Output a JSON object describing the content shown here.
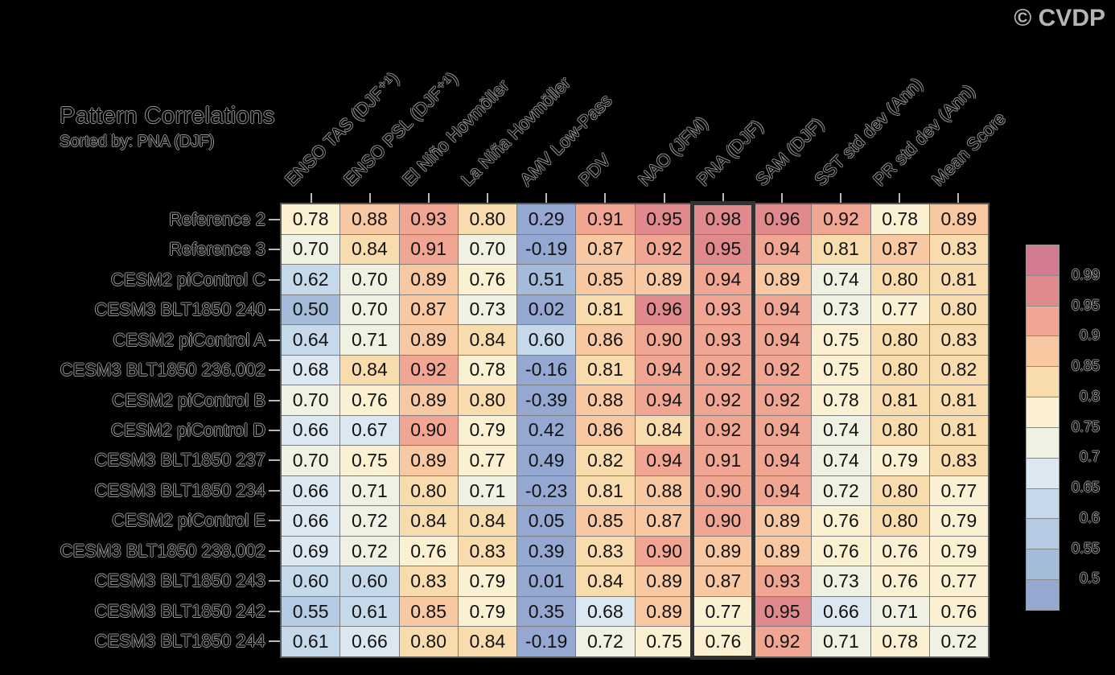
{
  "watermark": "© CVDP",
  "chart_data": {
    "type": "heatmap",
    "title": "Pattern Correlations",
    "subtitle": "Sorted by: PNA (DJF)",
    "columns": [
      "ENSO TAS (DJF⁺¹)",
      "ENSO PSL (DJF⁺¹)",
      "El Niño Hovmöller",
      "La Niña Hovmöller",
      "AMV Low-Pass",
      "PDV",
      "NAO (JFM)",
      "PNA (DJF)",
      "SAM (DJF)",
      "SST std dev (Ann)",
      "PR std dev (Ann)",
      "Mean Score"
    ],
    "rows": [
      "Reference 2",
      "Reference 3",
      "CESM2 piControl C",
      "CESM3 BLT1850 240",
      "CESM2 piControl A",
      "CESM3 BLT1850 236.002",
      "CESM2 piControl B",
      "CESM2 piControl D",
      "CESM3 BLT1850 237",
      "CESM3 BLT1850 234",
      "CESM2 piControl E",
      "CESM3 BLT1850 238.002",
      "CESM3 BLT1850 243",
      "CESM3 BLT1850 242",
      "CESM3 BLT1850 244"
    ],
    "values": [
      [
        "0.78",
        "0.88",
        "0.93",
        "0.80",
        "0.29",
        "0.91",
        "0.95",
        "0.98",
        "0.96",
        "0.92",
        "0.78",
        "0.89"
      ],
      [
        "0.70",
        "0.84",
        "0.91",
        "0.70",
        "-0.19",
        "0.87",
        "0.92",
        "0.95",
        "0.94",
        "0.81",
        "0.87",
        "0.83"
      ],
      [
        "0.62",
        "0.70",
        "0.89",
        "0.76",
        "0.51",
        "0.85",
        "0.89",
        "0.94",
        "0.89",
        "0.74",
        "0.80",
        "0.81"
      ],
      [
        "0.50",
        "0.70",
        "0.87",
        "0.73",
        "0.02",
        "0.81",
        "0.96",
        "0.93",
        "0.94",
        "0.73",
        "0.77",
        "0.80"
      ],
      [
        "0.64",
        "0.71",
        "0.89",
        "0.84",
        "0.60",
        "0.86",
        "0.90",
        "0.93",
        "0.94",
        "0.75",
        "0.80",
        "0.83"
      ],
      [
        "0.68",
        "0.84",
        "0.92",
        "0.78",
        "-0.16",
        "0.81",
        "0.94",
        "0.92",
        "0.92",
        "0.75",
        "0.80",
        "0.82"
      ],
      [
        "0.70",
        "0.76",
        "0.89",
        "0.80",
        "-0.39",
        "0.88",
        "0.94",
        "0.92",
        "0.92",
        "0.78",
        "0.81",
        "0.81"
      ],
      [
        "0.66",
        "0.67",
        "0.90",
        "0.79",
        "0.42",
        "0.86",
        "0.84",
        "0.92",
        "0.94",
        "0.74",
        "0.80",
        "0.81"
      ],
      [
        "0.70",
        "0.75",
        "0.89",
        "0.77",
        "0.49",
        "0.82",
        "0.94",
        "0.91",
        "0.94",
        "0.74",
        "0.79",
        "0.83"
      ],
      [
        "0.66",
        "0.71",
        "0.80",
        "0.71",
        "-0.23",
        "0.81",
        "0.88",
        "0.90",
        "0.94",
        "0.72",
        "0.80",
        "0.77"
      ],
      [
        "0.66",
        "0.72",
        "0.84",
        "0.84",
        "0.05",
        "0.85",
        "0.87",
        "0.90",
        "0.89",
        "0.76",
        "0.80",
        "0.79"
      ],
      [
        "0.69",
        "0.72",
        "0.76",
        "0.83",
        "0.39",
        "0.83",
        "0.90",
        "0.89",
        "0.89",
        "0.76",
        "0.76",
        "0.79"
      ],
      [
        "0.60",
        "0.60",
        "0.83",
        "0.79",
        "0.01",
        "0.84",
        "0.89",
        "0.87",
        "0.93",
        "0.73",
        "0.76",
        "0.77"
      ],
      [
        "0.55",
        "0.61",
        "0.85",
        "0.79",
        "0.35",
        "0.68",
        "0.89",
        "0.77",
        "0.95",
        "0.66",
        "0.71",
        "0.76"
      ],
      [
        "0.61",
        "0.66",
        "0.80",
        "0.84",
        "-0.19",
        "0.72",
        "0.75",
        "0.76",
        "0.92",
        "0.71",
        "0.78",
        "0.72"
      ]
    ],
    "highlighted_column_index": 7,
    "colorbar": {
      "tick_labels": [
        "0.99",
        "0.95",
        "0.9",
        "0.85",
        "0.8",
        "0.75",
        "0.7",
        "0.65",
        "0.6",
        "0.55",
        "0.5"
      ],
      "thresholds_desc": [
        0.99,
        0.95,
        0.9,
        0.85,
        0.8,
        0.75,
        0.7,
        0.65,
        0.6,
        0.55,
        0.5
      ],
      "band_colors_top_to_bottom": [
        "#d27b90",
        "#e18a8e",
        "#f1a693",
        "#f8c8a2",
        "#f9dcad",
        "#fbf0d1",
        "#f0f1e3",
        "#dce8f1",
        "#c6d9eb",
        "#b4cbe3",
        "#a5bbda",
        "#94a8d1"
      ]
    }
  }
}
